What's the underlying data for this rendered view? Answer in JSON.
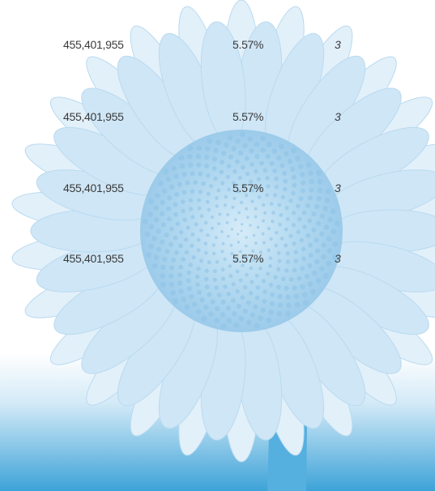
{
  "table": {
    "rows": [
      [
        "455,401,955",
        "5.57%",
        "3"
      ],
      [
        "455,401,955",
        "5.57%",
        "3"
      ],
      [
        "455,401,955",
        "5.57%",
        "3"
      ],
      [
        "455,401,955",
        "5.57%",
        "3"
      ]
    ]
  }
}
